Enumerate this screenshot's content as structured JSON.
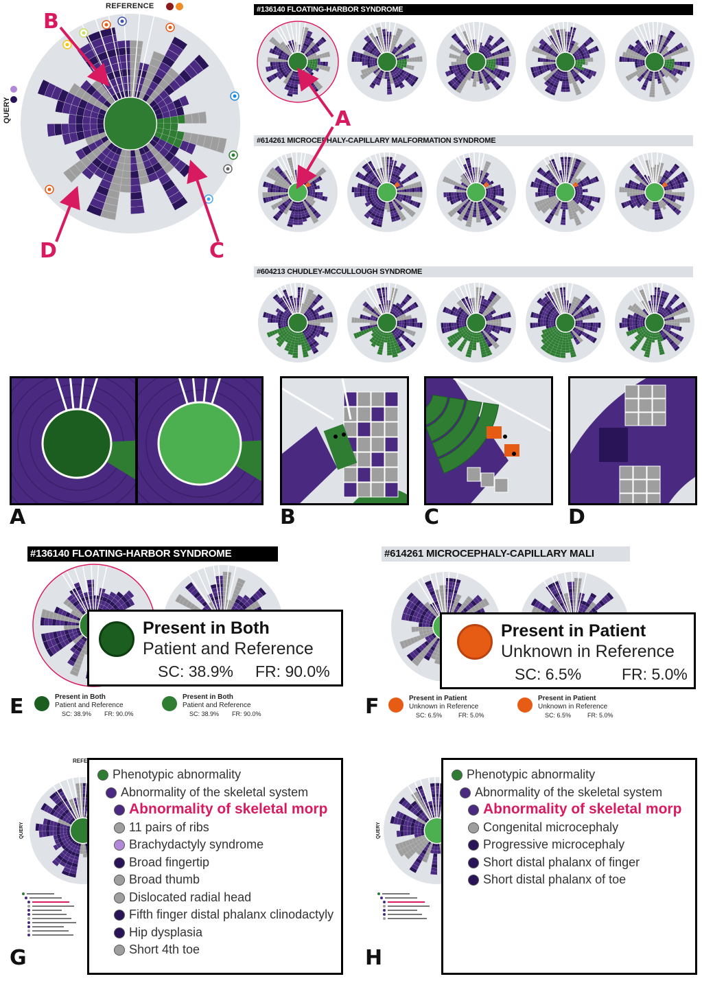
{
  "colors": {
    "dark_green": "#1b5e20",
    "green": "#2e7d32",
    "light_green": "#4caf50",
    "purple": "#4a2a80",
    "dark_purple": "#2a1458",
    "light_purple": "#b388d8",
    "gray": "#9e9e9e",
    "pale": "#dfe2e6",
    "orange": "#e65c14",
    "pink": "#d81b60"
  },
  "main_view": {
    "query_label": "QUERY",
    "reference_label": "REFERENCE",
    "callouts": {
      "a": "A",
      "b": "B",
      "c": "C",
      "d": "D"
    }
  },
  "syndromes": [
    {
      "title": "#136140 FLOATING-HARBOR SYNDROME",
      "style": "dark"
    },
    {
      "title": "#614261 MICROCEPHALY-CAPILLARY MALFORMATION SYNDROME",
      "style": "light"
    },
    {
      "title": "#604213 CHUDLEY-MCCULLOUGH SYNDROME",
      "style": "light"
    }
  ],
  "detail_panels": [
    {
      "letter": "A"
    },
    {
      "letter": "B"
    },
    {
      "letter": "C"
    },
    {
      "letter": "D"
    }
  ],
  "panel_e": {
    "letter": "E",
    "header": "#136140 FLOATING-HARBOR SYNDROME",
    "popup": {
      "title": "Present in Both",
      "subtitle": "Patient and Reference",
      "sc": "SC: 38.9%",
      "fr": "FR: 90.0%"
    },
    "legend": [
      {
        "line1": "Present in Both",
        "line2": "Patient and Reference",
        "sc": "SC: 38.9%",
        "fr": "FR: 90.0%",
        "color": "#1b5e20"
      },
      {
        "line1": "Present in Both",
        "line2": "Patient and Reference",
        "sc": "SC: 38.9%",
        "fr": "FR: 90.0%",
        "color": "#2e7d32"
      }
    ]
  },
  "panel_f": {
    "letter": "F",
    "header": "#614261 MICROCEPHALY-CAPILLARY MALI",
    "popup": {
      "title": "Present in Patient",
      "subtitle": "Unknown in Reference",
      "sc": "SC: 6.5%",
      "fr": "FR: 5.0%"
    },
    "legend": [
      {
        "line1": "Present in Patient",
        "line2": "Unknown in Reference",
        "sc": "SC: 6.5%",
        "fr": "FR: 5.0%",
        "color": "#e65c14"
      },
      {
        "line1": "Present in Patient",
        "line2": "Unknown in Reference",
        "sc": "SC: 6.5%",
        "fr": "FR: 5.0%",
        "color": "#e65c14"
      }
    ]
  },
  "panel_g": {
    "letter": "G",
    "small_ref": "REFE",
    "small_query": "QUERY",
    "tree": [
      {
        "label": "Phenotypic abnormality",
        "level": 0,
        "color": "#2e7d32"
      },
      {
        "label": "Abnormality of the skeletal system",
        "level": 1,
        "color": "#4a2a80"
      },
      {
        "label": "Abnormality of skeletal morp",
        "level": 2,
        "color": "#4a2a80",
        "highlight": true
      },
      {
        "label": "11 pairs of ribs",
        "level": 2,
        "color": "#9e9e9e"
      },
      {
        "label": "Brachydactyly syndrome",
        "level": 2,
        "color": "#b388d8"
      },
      {
        "label": "Broad fingertip",
        "level": 2,
        "color": "#2a1458"
      },
      {
        "label": "Broad thumb",
        "level": 2,
        "color": "#9e9e9e"
      },
      {
        "label": "Dislocated radial head",
        "level": 2,
        "color": "#9e9e9e"
      },
      {
        "label": "Fifth finger distal phalanx clinodactyly",
        "level": 2,
        "color": "#2a1458"
      },
      {
        "label": "Hip dysplasia",
        "level": 2,
        "color": "#2a1458"
      },
      {
        "label": "Short 4th toe",
        "level": 2,
        "color": "#9e9e9e"
      }
    ]
  },
  "panel_h": {
    "letter": "H",
    "small_query": "QUERY",
    "tree": [
      {
        "label": "Phenotypic abnormality",
        "level": 0,
        "color": "#2e7d32"
      },
      {
        "label": "Abnormality of the skeletal system",
        "level": 1,
        "color": "#4a2a80"
      },
      {
        "label": "Abnormality of skeletal morp",
        "level": 2,
        "color": "#4a2a80",
        "highlight": true
      },
      {
        "label": "Congenital microcephaly",
        "level": 2,
        "color": "#9e9e9e"
      },
      {
        "label": "Progressive microcephaly",
        "level": 2,
        "color": "#2a1458"
      },
      {
        "label": "Short distal phalanx of finger",
        "level": 2,
        "color": "#2a1458"
      },
      {
        "label": "Short distal phalanx of toe",
        "level": 2,
        "color": "#2a1458"
      }
    ]
  }
}
